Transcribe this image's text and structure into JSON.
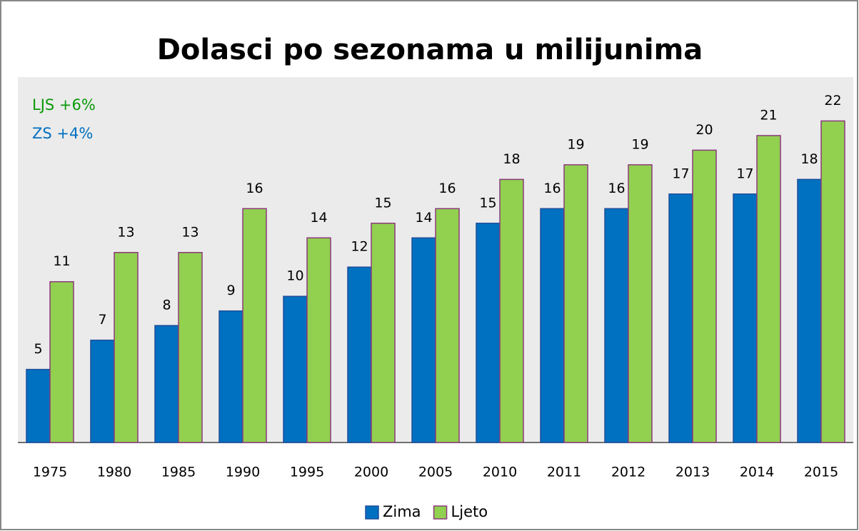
{
  "chart_data": {
    "type": "bar",
    "title": "Dolasci po sezonama u milijunima",
    "categories": [
      "1975",
      "1980",
      "1985",
      "1990",
      "1995",
      "2000",
      "2005",
      "2010",
      "2011",
      "2012",
      "2013",
      "2014",
      "2015"
    ],
    "series": [
      {
        "name": "Zima",
        "color": "#0070c0",
        "values": [
          5,
          7,
          8,
          9,
          10,
          12,
          14,
          15,
          16,
          16,
          17,
          17,
          18
        ]
      },
      {
        "name": "Ljeto",
        "color": "#92d050",
        "values": [
          11,
          13,
          13,
          16,
          14,
          15,
          16,
          18,
          19,
          19,
          20,
          21,
          22
        ]
      }
    ],
    "annotations": [
      {
        "text": "LJS +6%",
        "color": "#0a9a0a"
      },
      {
        "text": "ZS  +4%",
        "color": "#0070c0"
      }
    ],
    "ylim": [
      0,
      25
    ],
    "legend": "bottom"
  }
}
